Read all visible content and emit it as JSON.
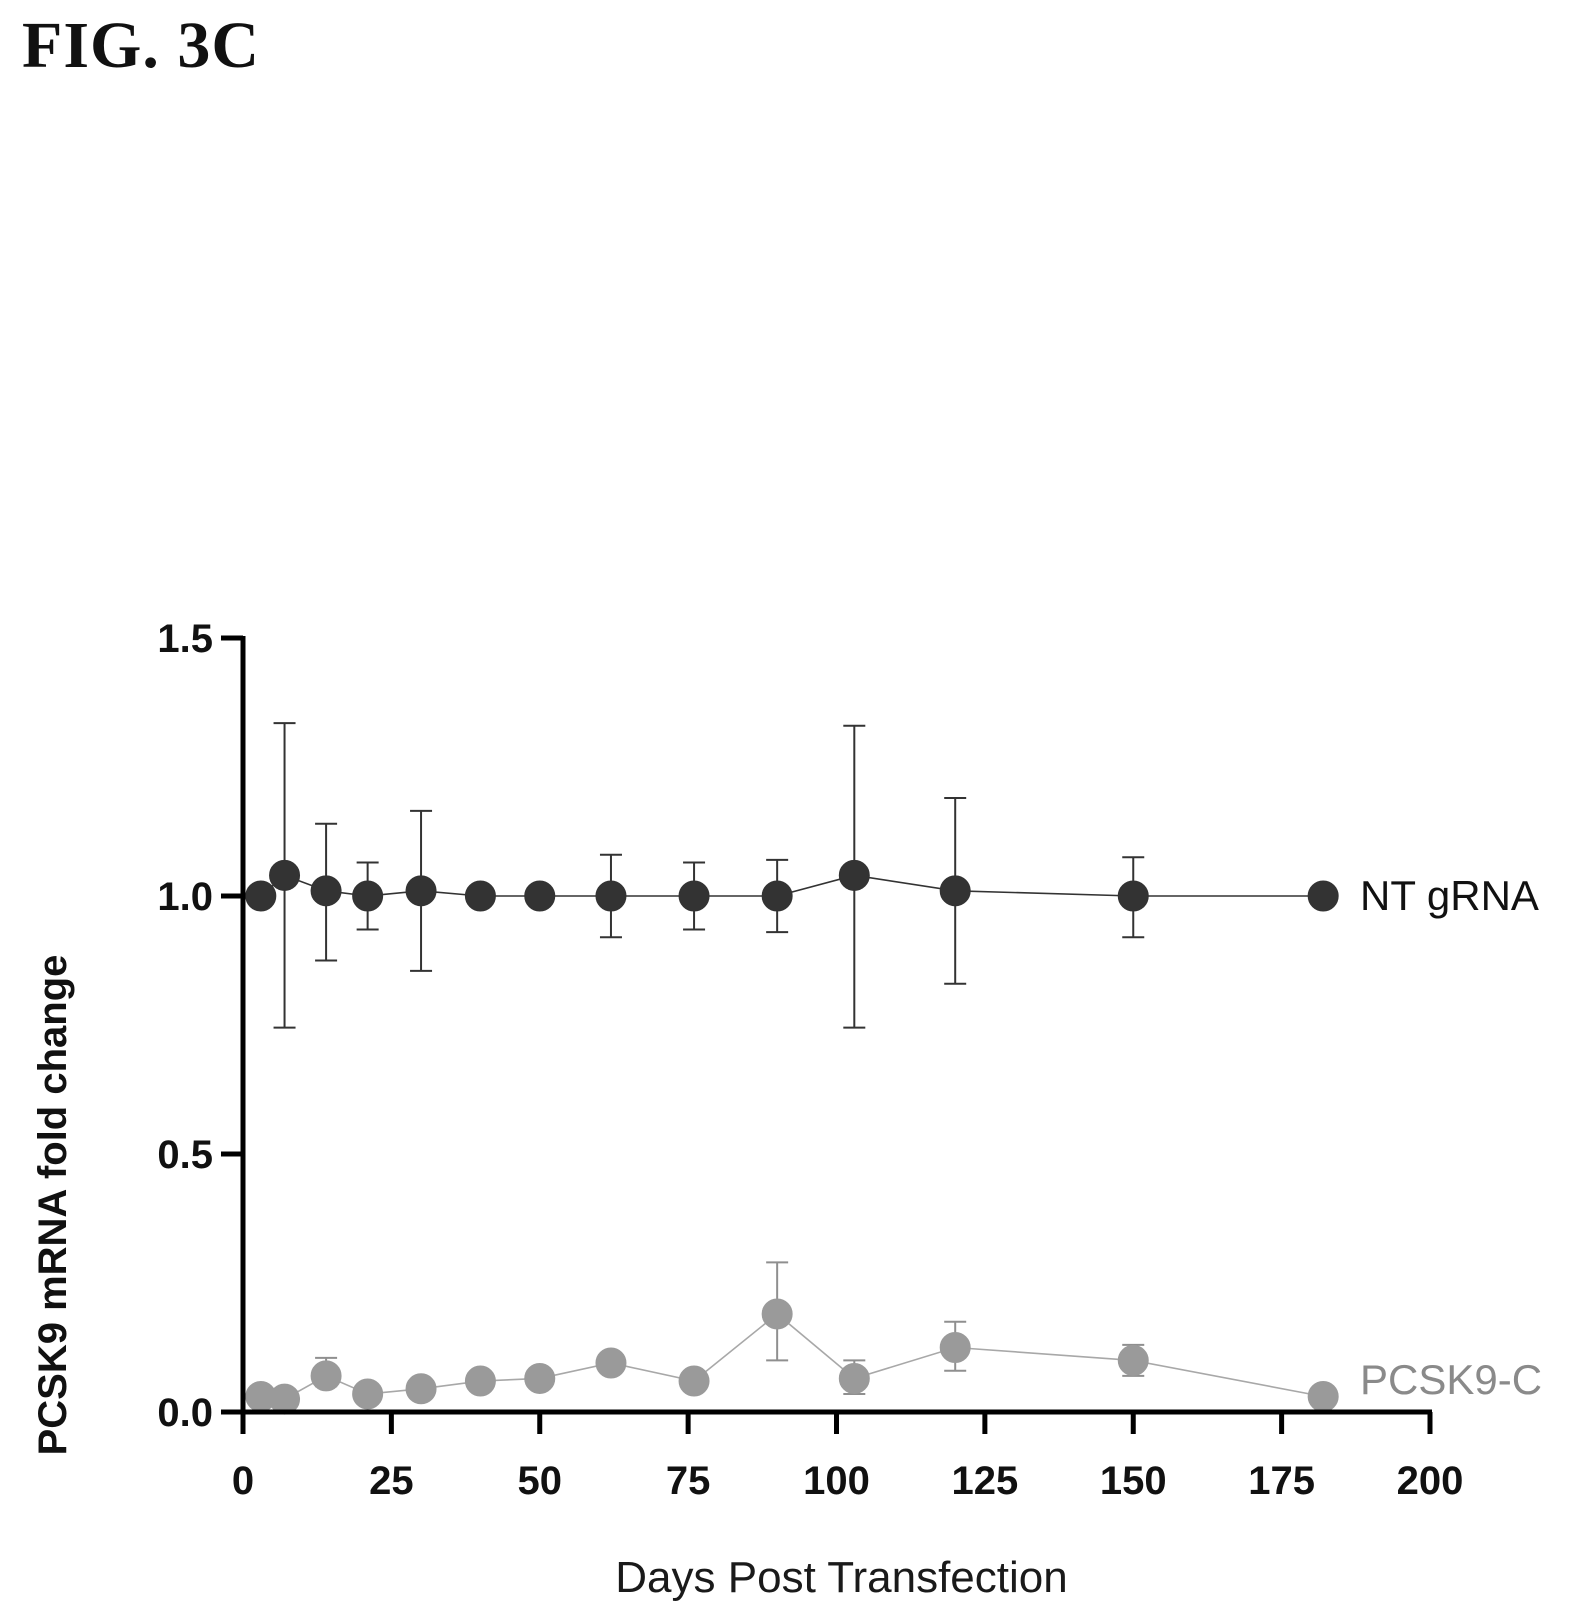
{
  "figure_label": "FIG. 3C",
  "colors": {
    "axis": "#000000",
    "nt_marker": "#333333",
    "nt_line": "#333333",
    "pcsk9_marker": "#9a9a9a",
    "pcsk9_line": "#a8a8a8",
    "pcsk9_label": "#8a8a8a",
    "nt_label": "#111111"
  },
  "chart_data": {
    "type": "line",
    "title": "",
    "xlabel": "Days Post Transfection",
    "ylabel": "PCSK9 mRNA fold change",
    "xlim": [
      0,
      200
    ],
    "ylim": [
      0,
      1.5
    ],
    "x_ticks": [
      "0",
      "25",
      "50",
      "75",
      "100",
      "125",
      "150",
      "175",
      "200"
    ],
    "y_ticks": [
      "0.0",
      "0.5",
      "1.0",
      "1.5"
    ],
    "grid": false,
    "legend": "inline labels at right end of each series",
    "series": [
      {
        "name": "NT gRNA",
        "marker": "circle",
        "x": [
          3,
          7,
          14,
          21,
          30,
          40,
          50,
          62,
          76,
          90,
          103,
          120,
          150,
          182
        ],
        "y": [
          1.0,
          1.04,
          1.01,
          1.0,
          1.01,
          1.0,
          1.0,
          1.0,
          1.0,
          1.0,
          1.04,
          1.01,
          1.0,
          1.0
        ],
        "err_low": [
          null,
          0.745,
          0.875,
          0.935,
          0.855,
          null,
          null,
          0.92,
          0.935,
          0.93,
          0.745,
          0.83,
          0.92,
          null
        ],
        "err_high": [
          null,
          1.335,
          1.14,
          1.065,
          1.165,
          null,
          null,
          1.08,
          1.065,
          1.07,
          1.33,
          1.19,
          1.075,
          null
        ]
      },
      {
        "name": "PCSK9-C",
        "marker": "circle",
        "x": [
          3,
          7,
          14,
          21,
          30,
          40,
          50,
          62,
          76,
          90,
          103,
          120,
          150,
          182
        ],
        "y": [
          0.03,
          0.025,
          0.07,
          0.035,
          0.045,
          0.06,
          0.065,
          0.095,
          0.06,
          0.19,
          0.065,
          0.125,
          0.1,
          0.03
        ],
        "err_low": [
          null,
          null,
          0.05,
          null,
          null,
          null,
          null,
          null,
          null,
          0.1,
          0.035,
          0.08,
          0.07,
          null
        ],
        "err_high": [
          null,
          null,
          0.105,
          null,
          null,
          null,
          null,
          null,
          null,
          0.29,
          0.1,
          0.175,
          0.13,
          null
        ]
      }
    ]
  }
}
